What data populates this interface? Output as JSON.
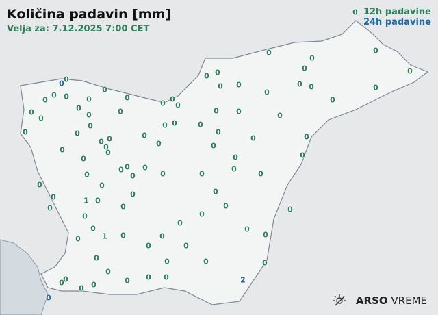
{
  "title": "Količina padavin [mm]",
  "valid_time": "Velja za: 7.12.2025 7:00 CET",
  "legend": {
    "h12": "12h padavine",
    "h24": "24h padavine"
  },
  "colors": {
    "h12": "#2e7d5b",
    "h24": "#1f6aa0",
    "sea": "#d3dbe0",
    "land": "#f4f5f5"
  },
  "logo": {
    "icon": "sun-weather-icon",
    "brand": "ARSO",
    "product": "VREME"
  },
  "stations": [
    {
      "v": "0",
      "t": "12h"
    },
    {
      "v": "0",
      "t": "12h"
    },
    {
      "v": "0",
      "t": "12h"
    },
    {
      "v": "0",
      "t": "12h"
    },
    {
      "v": "0",
      "t": "12h"
    },
    {
      "v": "0",
      "t": "12h"
    },
    {
      "v": "0",
      "t": "12h"
    },
    {
      "v": "0",
      "t": "12h"
    },
    {
      "v": "0",
      "t": "12h"
    },
    {
      "v": "0",
      "t": "24h"
    },
    {
      "v": "0",
      "t": "12h"
    },
    {
      "v": "0",
      "t": "12h"
    },
    {
      "v": "0",
      "t": "12h"
    },
    {
      "v": "0",
      "t": "12h"
    },
    {
      "v": "0",
      "t": "12h"
    },
    {
      "v": "0",
      "t": "12h"
    },
    {
      "v": "0",
      "t": "12h"
    },
    {
      "v": "0",
      "t": "12h"
    },
    {
      "v": "0",
      "t": "12h"
    },
    {
      "v": "0",
      "t": "12h"
    },
    {
      "v": "0",
      "t": "12h"
    },
    {
      "v": "0",
      "t": "12h"
    },
    {
      "v": "0",
      "t": "12h"
    },
    {
      "v": "0",
      "t": "12h"
    },
    {
      "v": "0",
      "t": "12h"
    },
    {
      "v": "0",
      "t": "12h"
    },
    {
      "v": "0",
      "t": "12h"
    },
    {
      "v": "0",
      "t": "12h"
    },
    {
      "v": "0",
      "t": "12h"
    },
    {
      "v": "0",
      "t": "12h"
    },
    {
      "v": "0",
      "t": "12h"
    },
    {
      "v": "0",
      "t": "12h"
    },
    {
      "v": "0",
      "t": "12h"
    },
    {
      "v": "0",
      "t": "12h"
    },
    {
      "v": "0",
      "t": "12h"
    },
    {
      "v": "0",
      "t": "12h"
    },
    {
      "v": "0",
      "t": "12h"
    },
    {
      "v": "0",
      "t": "12h"
    },
    {
      "v": "0",
      "t": "12h"
    },
    {
      "v": "0",
      "t": "12h"
    },
    {
      "v": "0",
      "t": "12h"
    },
    {
      "v": "0",
      "t": "12h"
    },
    {
      "v": "0",
      "t": "12h"
    },
    {
      "v": "0",
      "t": "12h"
    },
    {
      "v": "0",
      "t": "12h"
    },
    {
      "v": "0",
      "t": "12h"
    },
    {
      "v": "0",
      "t": "12h"
    },
    {
      "v": "0",
      "t": "12h"
    },
    {
      "v": "0",
      "t": "12h"
    },
    {
      "v": "0",
      "t": "12h"
    },
    {
      "v": "0",
      "t": "12h"
    },
    {
      "v": "0",
      "t": "12h"
    },
    {
      "v": "0",
      "t": "12h"
    },
    {
      "v": "0",
      "t": "12h"
    },
    {
      "v": "0",
      "t": "12h"
    },
    {
      "v": "0",
      "t": "12h"
    },
    {
      "v": "0",
      "t": "12h"
    },
    {
      "v": "0",
      "t": "12h"
    },
    {
      "v": "0",
      "t": "12h"
    },
    {
      "v": "0",
      "t": "12h"
    },
    {
      "v": "0",
      "t": "12h"
    },
    {
      "v": "0",
      "t": "12h"
    },
    {
      "v": "0",
      "t": "12h"
    },
    {
      "v": "0",
      "t": "12h"
    },
    {
      "v": "0",
      "t": "12h"
    },
    {
      "v": "0",
      "t": "12h"
    },
    {
      "v": "1",
      "t": "12h"
    },
    {
      "v": "0",
      "t": "12h"
    },
    {
      "v": "0",
      "t": "12h"
    },
    {
      "v": "0",
      "t": "12h"
    },
    {
      "v": "0",
      "t": "12h"
    },
    {
      "v": "0",
      "t": "12h"
    },
    {
      "v": "0",
      "t": "12h"
    },
    {
      "v": "0",
      "t": "12h"
    },
    {
      "v": "0",
      "t": "12h"
    },
    {
      "v": "0",
      "t": "12h"
    },
    {
      "v": "0",
      "t": "12h"
    },
    {
      "v": "0",
      "t": "12h"
    },
    {
      "v": "1",
      "t": "12h"
    },
    {
      "v": "0",
      "t": "12h"
    },
    {
      "v": "0",
      "t": "12h"
    },
    {
      "v": "0",
      "t": "12h"
    },
    {
      "v": "0",
      "t": "12h"
    },
    {
      "v": "0",
      "t": "12h"
    },
    {
      "v": "0",
      "t": "12h"
    },
    {
      "v": "0",
      "t": "12h"
    },
    {
      "v": "0",
      "t": "12h"
    },
    {
      "v": "0",
      "t": "12h"
    },
    {
      "v": "0",
      "t": "12h"
    },
    {
      "v": "0",
      "t": "12h"
    },
    {
      "v": "0",
      "t": "12h"
    },
    {
      "v": "0",
      "t": "12h"
    },
    {
      "v": "0",
      "t": "12h"
    },
    {
      "v": "0",
      "t": "12h"
    },
    {
      "v": "0",
      "t": "12h"
    },
    {
      "v": "0",
      "t": "12h"
    },
    {
      "v": "0",
      "t": "12h"
    },
    {
      "v": "0",
      "t": "12h"
    },
    {
      "v": "2",
      "t": "24h"
    },
    {
      "v": "0",
      "t": "24h"
    }
  ]
}
